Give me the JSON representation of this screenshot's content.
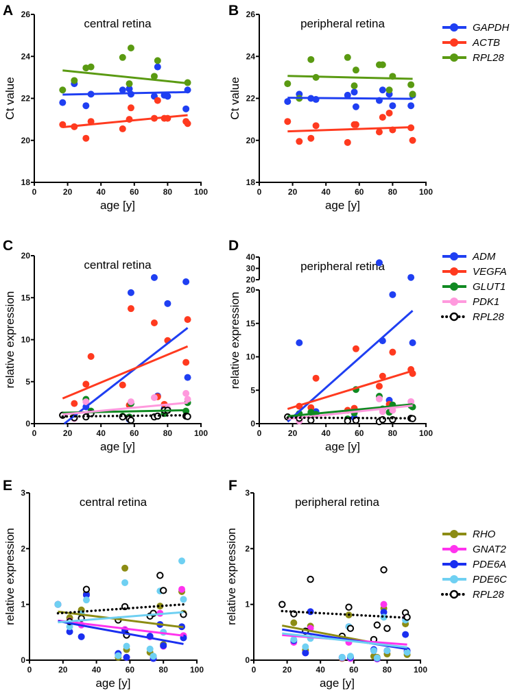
{
  "chart_data": [
    {
      "panel": "A",
      "type": "scatter",
      "title": "central retina",
      "xlabel": "age [y]",
      "ylabel": "Ct value",
      "xlim": [
        0,
        100
      ],
      "ylim": [
        18,
        26
      ],
      "xticks": [
        "0",
        "20",
        "40",
        "60",
        "80",
        "100"
      ],
      "yticks": [
        "18",
        "20",
        "22",
        "24",
        "26"
      ],
      "x": [
        17,
        24,
        31,
        34,
        53,
        57,
        58,
        72,
        74,
        78,
        80,
        91,
        92
      ],
      "series": [
        {
          "name": "GAPDH",
          "color": "#1f3ff2",
          "marker": "filled",
          "line": "solid",
          "values": [
            21.8,
            22.7,
            21.65,
            22.2,
            22.4,
            22.45,
            22.2,
            22.1,
            23.5,
            22.15,
            22.1,
            21.5,
            22.4
          ],
          "fit": {
            "x": [
              17,
              92
            ],
            "y": [
              22.18,
              22.3
            ]
          }
        },
        {
          "name": "ACTB",
          "color": "#ff3a1f",
          "marker": "filled",
          "line": "solid",
          "values": [
            20.75,
            20.65,
            20.1,
            20.9,
            20.55,
            21.0,
            21.55,
            21.05,
            21.9,
            21.05,
            21.05,
            20.9,
            20.8
          ],
          "fit": {
            "x": [
              17,
              92
            ],
            "y": [
              20.63,
              21.2
            ]
          }
        },
        {
          "name": "RPL28",
          "color": "#5a9a12",
          "marker": "filled",
          "line": "solid",
          "values": [
            22.4,
            22.85,
            23.45,
            23.5,
            23.95,
            22.7,
            24.4,
            23.05,
            23.8,
            null,
            null,
            null,
            22.75
          ],
          "fit": {
            "x": [
              17,
              92
            ],
            "y": [
              23.33,
              22.72
            ]
          }
        }
      ]
    },
    {
      "panel": "B",
      "type": "scatter",
      "title": "peripheral retina",
      "xlabel": "age [y]",
      "ylabel": "Ct value",
      "xlim": [
        0,
        100
      ],
      "ylim": [
        18,
        26
      ],
      "xticks": [
        "0",
        "20",
        "40",
        "60",
        "80",
        "100"
      ],
      "yticks": [
        "18",
        "20",
        "22",
        "24",
        "26"
      ],
      "x": [
        17,
        24,
        31,
        34,
        53,
        57,
        58,
        72,
        74,
        78,
        80,
        91,
        92
      ],
      "legend": "right",
      "series": [
        {
          "name": "GAPDH",
          "color": "#1f3ff2",
          "marker": "filled",
          "line": "solid",
          "values": [
            21.85,
            22.2,
            22.0,
            21.95,
            22.15,
            22.3,
            21.6,
            21.9,
            22.4,
            22.2,
            21.65,
            21.65,
            22.15
          ],
          "fit": {
            "x": [
              17,
              92
            ],
            "y": [
              22.03,
              21.98
            ]
          }
        },
        {
          "name": "ACTB",
          "color": "#ff3a1f",
          "marker": "filled",
          "line": "solid",
          "values": [
            20.9,
            19.95,
            20.1,
            20.7,
            19.9,
            20.75,
            20.75,
            20.4,
            21.1,
            21.3,
            20.5,
            20.6,
            20.0
          ],
          "fit": {
            "x": [
              17,
              92
            ],
            "y": [
              20.43,
              20.63
            ]
          }
        },
        {
          "name": "RPL28",
          "color": "#5a9a12",
          "marker": "filled",
          "line": "solid",
          "values": [
            22.7,
            22.0,
            23.85,
            23.0,
            23.95,
            22.6,
            23.35,
            23.6,
            23.6,
            22.4,
            23.05,
            22.65,
            22.2
          ],
          "fit": {
            "x": [
              17,
              92
            ],
            "y": [
              23.07,
              22.93
            ]
          }
        }
      ]
    },
    {
      "panel": "C",
      "type": "scatter",
      "title": "central retina",
      "xlabel": "age [y]",
      "ylabel": "relative expression",
      "xlim": [
        0,
        100
      ],
      "ylim": [
        0,
        20
      ],
      "xticks": [
        "0",
        "20",
        "40",
        "60",
        "80",
        "100"
      ],
      "yticks": [
        "0",
        "5",
        "10",
        "15",
        "20"
      ],
      "x": [
        17,
        24,
        31,
        34,
        53,
        57,
        58,
        72,
        74,
        78,
        80,
        91,
        92
      ],
      "series": [
        {
          "name": "ADM",
          "color": "#1f3ff2",
          "marker": "filled",
          "line": "solid",
          "values": [
            1.0,
            0.7,
            2.0,
            1.3,
            0.8,
            0.5,
            15.6,
            17.4,
            3.3,
            1.8,
            14.3,
            16.9,
            5.5
          ],
          "fit": {
            "x": [
              18,
              92
            ],
            "y": [
              0,
              11.4
            ]
          }
        },
        {
          "name": "VEGFA",
          "color": "#ff3a1f",
          "marker": "filled",
          "line": "solid",
          "values": [
            1.0,
            2.4,
            4.7,
            8.0,
            4.6,
            2.2,
            13.7,
            12.0,
            3.2,
            2.3,
            9.9,
            7.3,
            12.4
          ],
          "fit": {
            "x": [
              17,
              92
            ],
            "y": [
              3.0,
              9.2
            ]
          }
        },
        {
          "name": "GLUT1",
          "color": "#108a22",
          "marker": "filled",
          "line": "solid",
          "values": [
            1.0,
            0.9,
            2.9,
            1.5,
            0.9,
            0.8,
            2.4,
            null,
            0.9,
            1.2,
            1.6,
            1.5,
            2.5
          ],
          "fit": {
            "x": [
              17,
              92
            ],
            "y": [
              1.3,
              1.6
            ]
          }
        },
        {
          "name": "PDK1",
          "color": "#ff99dd",
          "marker": "filled",
          "line": "solid",
          "values": [
            1.0,
            0.6,
            2.6,
            null,
            null,
            null,
            2.6,
            3.1,
            null,
            null,
            1.8,
            3.6,
            2.9
          ],
          "fit": {
            "x": [
              17,
              92
            ],
            "y": [
              1.1,
              2.5
            ]
          }
        },
        {
          "name": "RPL28",
          "color": "#000000",
          "marker": "open",
          "line": "dotted",
          "values": [
            1.0,
            0.7,
            0.8,
            1.2,
            0.8,
            0.6,
            0.4,
            0.8,
            0.9,
            1.6,
            1.6,
            0.9,
            0.85
          ],
          "fit": {
            "x": [
              17,
              92
            ],
            "y": [
              0.85,
              1.0
            ]
          }
        }
      ]
    },
    {
      "panel": "D",
      "type": "scatter",
      "title": "peripheral retina",
      "xlabel": "age [y]",
      "ylabel": "relative expression",
      "xlim": [
        0,
        100
      ],
      "ylim": [
        0,
        40
      ],
      "y_segments": [
        [
          0,
          20
        ],
        [
          20,
          40
        ]
      ],
      "xticks": [
        "0",
        "20",
        "40",
        "60",
        "80",
        "100"
      ],
      "yticks": [
        "0",
        "5",
        "10",
        "15",
        "20"
      ],
      "yticks_upper": [
        "20",
        "30",
        "40"
      ],
      "x": [
        17,
        24,
        31,
        34,
        53,
        57,
        58,
        72,
        74,
        78,
        80,
        91,
        92
      ],
      "legend": "right",
      "series": [
        {
          "name": "ADM",
          "color": "#1f3ff2",
          "marker": "filled",
          "line": "solid",
          "values": [
            1.0,
            12.1,
            null,
            1.8,
            null,
            0.9,
            null,
            35.0,
            12.4,
            3.5,
            19.3,
            22.0,
            12.1
          ],
          "fit": {
            "x": [
              17,
              92
            ],
            "y": [
              0.3,
              16.9
            ]
          }
        },
        {
          "name": "VEGFA",
          "color": "#ff3a1f",
          "marker": "filled",
          "line": "solid",
          "values": [
            1.0,
            2.6,
            2.4,
            6.8,
            2.0,
            2.3,
            11.2,
            5.6,
            7.1,
            2.9,
            10.7,
            8.1,
            7.5
          ],
          "fit": {
            "x": [
              17,
              92
            ],
            "y": [
              2.2,
              7.9
            ]
          }
        },
        {
          "name": "GLUT1",
          "color": "#108a22",
          "marker": "filled",
          "line": "solid",
          "values": [
            1.0,
            1.5,
            1.7,
            1.4,
            0.7,
            1.6,
            5.1,
            4.1,
            2.2,
            1.7,
            2.8,
            2.7,
            2.5
          ],
          "fit": {
            "x": [
              17,
              92
            ],
            "y": [
              1.1,
              2.9
            ]
          }
        },
        {
          "name": "PDK1",
          "color": "#ff99dd",
          "marker": "filled",
          "line": "solid",
          "values": [
            1.0,
            0.4,
            null,
            null,
            null,
            null,
            null,
            3.7,
            1.8,
            null,
            2.0,
            3.3,
            null
          ],
          "fit": {
            "x": [
              17,
              92
            ],
            "y": [
              0.7,
              2.7
            ]
          }
        },
        {
          "name": "RPL28",
          "color": "#000000",
          "marker": "open",
          "line": "dotted",
          "values": [
            1.0,
            0.8,
            0.5,
            null,
            0.4,
            null,
            0.5,
            0.3,
            0.6,
            null,
            0.6,
            0.8,
            0.75
          ],
          "fit": {
            "x": [
              17,
              92
            ],
            "y": [
              0.9,
              0.8
            ]
          }
        }
      ]
    },
    {
      "panel": "E",
      "type": "scatter",
      "title": "central retina",
      "xlabel": "age [y]",
      "ylabel": "relative expression",
      "xlim": [
        0,
        100
      ],
      "ylim": [
        0,
        3
      ],
      "xticks": [
        "0",
        "20",
        "40",
        "60",
        "80",
        "100"
      ],
      "yticks": [
        "0",
        "1",
        "2",
        "3"
      ],
      "x": [
        17,
        24,
        31,
        34,
        53,
        57,
        58,
        72,
        74,
        78,
        80,
        91,
        92
      ],
      "series": [
        {
          "name": "RHO",
          "color": "#8c8c14",
          "marker": "filled",
          "line": "solid",
          "values": [
            1.0,
            0.76,
            0.9,
            1.2,
            0.05,
            1.65,
            0.19,
            0.14,
            0.07,
            0.97,
            0.28,
            1.23,
            0.84
          ],
          "fit": {
            "x": [
              17,
              92
            ],
            "y": [
              0.87,
              0.59
            ]
          }
        },
        {
          "name": "GNAT2",
          "color": "#ff33ee",
          "marker": "filled",
          "line": "solid",
          "values": [
            1.0,
            0.7,
            0.63,
            1.17,
            0.1,
            0.55,
            0.05,
            0.42,
            0.03,
            0.84,
            0.25,
            1.27,
            0.44
          ],
          "fit": {
            "x": [
              17,
              92
            ],
            "y": [
              0.71,
              0.44
            ]
          }
        },
        {
          "name": "PDE6A",
          "color": "#1a2ff0",
          "marker": "filled",
          "line": "solid",
          "values": [
            1.0,
            0.51,
            0.42,
            1.17,
            0.12,
            0.53,
            0.05,
            0.43,
            0.03,
            0.64,
            0.26,
            0.6,
            0.4
          ],
          "fit": {
            "x": [
              17,
              92
            ],
            "y": [
              0.7,
              0.29
            ]
          }
        },
        {
          "name": "PDE6C",
          "color": "#6fd0f2",
          "marker": "filled",
          "line": "solid",
          "values": [
            1.0,
            0.6,
            0.83,
            1.08,
            0.08,
            1.39,
            0.25,
            0.2,
            0.07,
            1.24,
            0.5,
            1.78,
            1.09
          ],
          "fit": {
            "x": [
              17,
              92
            ],
            "y": [
              0.68,
              0.86
            ]
          }
        },
        {
          "name": "RPL28",
          "color": "#000000",
          "marker": "open",
          "line": "dotted",
          "values": [
            null,
            0.69,
            0.75,
            1.27,
            0.72,
            0.96,
            0.45,
            0.79,
            0.84,
            1.52,
            1.25,
            null,
            0.82
          ],
          "fit": {
            "x": [
              17,
              92
            ],
            "y": [
              0.84,
              1.0
            ]
          }
        }
      ]
    },
    {
      "panel": "F",
      "type": "scatter",
      "title": "peripheral retina",
      "xlabel": "age [y]",
      "ylabel": "relative expression",
      "xlim": [
        0,
        100
      ],
      "ylim": [
        0,
        3
      ],
      "xticks": [
        "0",
        "20",
        "40",
        "60",
        "80",
        "100"
      ],
      "yticks": [
        "0",
        "1",
        "2",
        "3"
      ],
      "x": [
        17,
        24,
        31,
        34,
        53,
        57,
        58,
        72,
        74,
        78,
        80,
        91,
        92
      ],
      "legend": "right",
      "series": [
        {
          "name": "RHO",
          "color": "#8c8c14",
          "marker": "filled",
          "line": "solid",
          "values": [
            1.0,
            0.67,
            0.18,
            0.61,
            0.03,
            0.81,
            0.05,
            0.07,
            0.05,
            0.93,
            0.11,
            0.65,
            0.1
          ],
          "fit": {
            "x": [
              17,
              92
            ],
            "y": [
              0.62,
              0.2
            ]
          }
        },
        {
          "name": "GNAT2",
          "color": "#ff33ee",
          "marker": "filled",
          "line": "solid",
          "values": [
            1.0,
            0.32,
            0.13,
            0.57,
            0.04,
            0.32,
            0.03,
            0.17,
            0.02,
            1.0,
            0.17,
            0.75,
            0.15
          ],
          "fit": {
            "x": [
              17,
              92
            ],
            "y": [
              0.45,
              0.28
            ]
          }
        },
        {
          "name": "PDE6A",
          "color": "#1a2ff0",
          "marker": "filled",
          "line": "solid",
          "values": [
            1.0,
            0.35,
            0.13,
            0.87,
            0.05,
            0.6,
            0.05,
            0.19,
            0.03,
            0.86,
            0.17,
            0.46,
            0.17
          ],
          "fit": {
            "x": [
              17,
              92
            ],
            "y": [
              0.55,
              0.2
            ]
          }
        },
        {
          "name": "PDE6C",
          "color": "#6fd0f2",
          "marker": "filled",
          "line": "solid",
          "values": [
            1.0,
            0.37,
            0.24,
            0.39,
            0.05,
            0.6,
            0.07,
            0.17,
            0.04,
            0.77,
            0.17,
            0.72,
            0.14
          ],
          "fit": {
            "x": [
              17,
              92
            ],
            "y": [
              0.48,
              0.23
            ]
          }
        },
        {
          "name": "RPL28",
          "color": "#000000",
          "marker": "open",
          "line": "dotted",
          "values": [
            1.0,
            0.83,
            0.52,
            1.45,
            0.43,
            0.95,
            0.57,
            0.37,
            0.63,
            1.62,
            0.57,
            0.85,
            0.77
          ],
          "fit": {
            "x": [
              17,
              92
            ],
            "y": [
              0.88,
              0.76
            ]
          }
        }
      ]
    }
  ]
}
